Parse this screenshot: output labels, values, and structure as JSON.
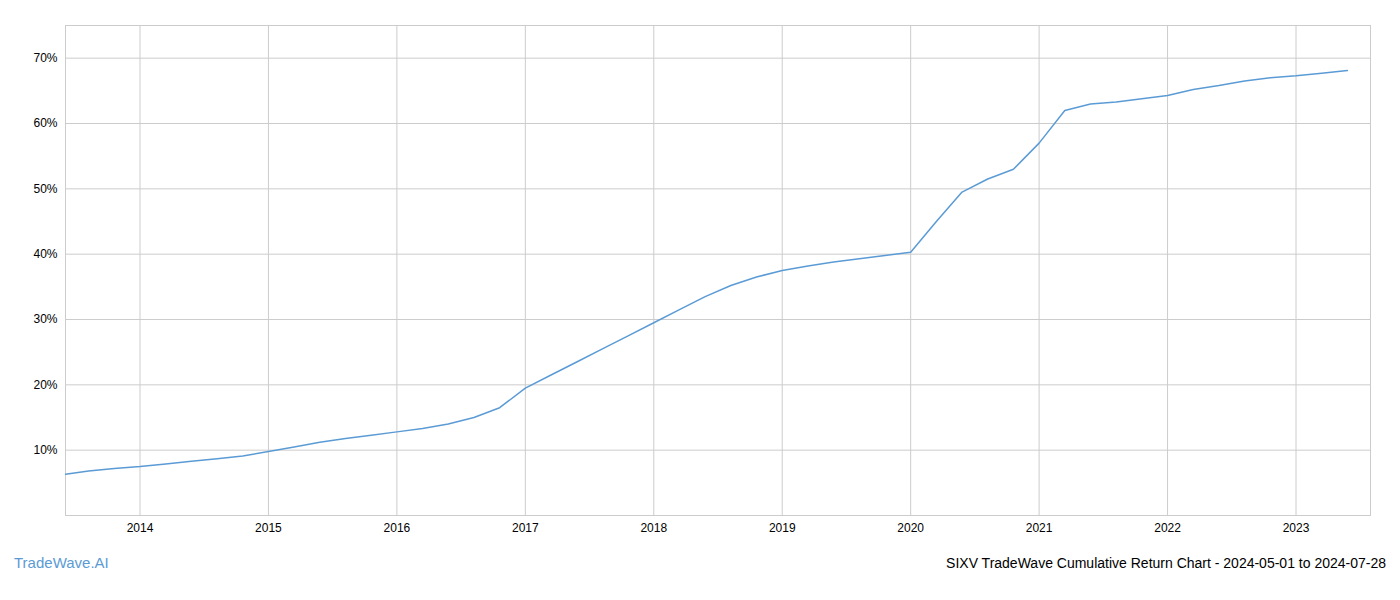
{
  "chart_data": {
    "type": "line",
    "title": "SIXV TradeWave Cumulative Return Chart - 2024-05-01 to 2024-07-28",
    "annotations": [
      {
        "text": "TradeWave.AI"
      }
    ],
    "x": [
      2013.42,
      2013.6,
      2013.8,
      2014.0,
      2014.2,
      2014.4,
      2014.6,
      2014.8,
      2015.0,
      2015.2,
      2015.4,
      2015.6,
      2015.8,
      2016.0,
      2016.2,
      2016.4,
      2016.6,
      2016.8,
      2017.0,
      2017.2,
      2017.4,
      2017.6,
      2017.8,
      2018.0,
      2018.2,
      2018.4,
      2018.6,
      2018.8,
      2019.0,
      2019.2,
      2019.4,
      2019.6,
      2019.8,
      2020.0,
      2020.2,
      2020.4,
      2020.6,
      2020.8,
      2021.0,
      2021.2,
      2021.4,
      2021.6,
      2021.8,
      2022.0,
      2022.2,
      2022.4,
      2022.6,
      2022.8,
      2023.0,
      2023.2,
      2023.4
    ],
    "values": [
      6.3,
      6.8,
      7.2,
      7.5,
      7.9,
      8.3,
      8.7,
      9.1,
      9.8,
      10.5,
      11.2,
      11.8,
      12.3,
      12.8,
      13.3,
      14.0,
      15.0,
      16.5,
      19.5,
      21.5,
      23.5,
      25.5,
      27.5,
      29.5,
      31.5,
      33.5,
      35.2,
      36.5,
      37.5,
      38.2,
      38.8,
      39.3,
      39.8,
      40.3,
      45.0,
      49.5,
      51.5,
      53.0,
      57.0,
      62.0,
      63.0,
      63.3,
      63.8,
      64.3,
      65.2,
      65.8,
      66.5,
      67.0,
      67.3,
      67.7,
      68.1
    ],
    "color": "#5b9bd5",
    "xlim": [
      2013.42,
      2023.58
    ],
    "ylim": [
      0,
      75
    ],
    "xticks": [
      2014,
      2015,
      2016,
      2017,
      2018,
      2019,
      2020,
      2021,
      2022,
      2023
    ],
    "yticks": [
      {
        "value": 10,
        "label": "10%"
      },
      {
        "value": 20,
        "label": "20%"
      },
      {
        "value": 30,
        "label": "30%"
      },
      {
        "value": 40,
        "label": "40%"
      },
      {
        "value": 50,
        "label": "50%"
      },
      {
        "value": 60,
        "label": "60%"
      },
      {
        "value": 70,
        "label": "70%"
      }
    ],
    "grid": true
  }
}
